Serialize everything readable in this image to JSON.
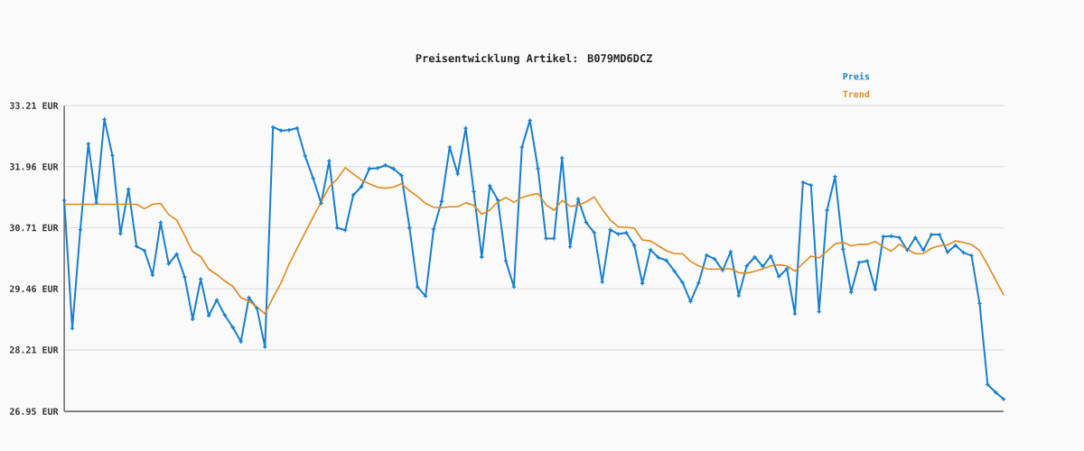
{
  "chart_data": {
    "type": "line",
    "title": "Preisentwicklung Artikel: B079MD6DCZ",
    "categories": [
      null,
      null,
      null,
      null,
      null,
      null,
      null,
      null,
      null,
      null,
      null,
      null,
      null,
      null,
      null,
      null,
      null,
      null,
      null,
      null,
      null,
      null,
      null,
      null,
      null,
      null,
      null,
      null,
      null,
      null,
      null,
      null,
      null,
      null,
      null,
      null,
      null,
      null,
      null,
      null,
      null,
      null,
      null,
      null,
      null,
      null,
      null,
      null,
      null,
      null,
      null,
      null,
      null,
      null,
      null,
      null,
      null,
      null,
      null,
      null,
      null,
      null,
      null,
      null,
      null,
      null,
      null,
      null,
      null,
      null,
      null,
      null,
      null,
      null,
      null,
      null,
      null,
      null,
      null,
      null,
      null,
      null,
      null,
      null,
      null,
      null,
      null,
      null,
      null,
      null,
      null,
      null,
      null,
      null,
      null,
      null,
      null,
      null,
      null,
      null,
      null,
      null,
      null,
      null,
      null,
      null,
      null,
      null,
      null,
      null,
      null,
      null,
      null,
      null,
      null,
      null,
      null,
      null
    ],
    "series": [
      {
        "name": "Preis",
        "color": "#1a7fcc",
        "marker": "cross",
        "values": [
          31.27,
          28.65,
          30.67,
          32.43,
          31.22,
          32.93,
          32.19,
          30.59,
          31.5,
          30.33,
          30.24,
          29.74,
          30.82,
          29.97,
          30.17,
          29.7,
          28.84,
          29.66,
          28.91,
          29.23,
          28.92,
          28.67,
          28.38,
          29.28,
          29.06,
          28.27,
          32.77,
          32.7,
          32.71,
          32.75,
          32.18,
          31.72,
          31.21,
          32.08,
          30.71,
          30.66,
          31.38,
          31.55,
          31.92,
          31.93,
          31.99,
          31.92,
          31.78,
          30.71,
          29.5,
          29.31,
          30.68,
          31.25,
          32.36,
          31.81,
          32.75,
          31.45,
          30.11,
          31.57,
          31.28,
          30.03,
          29.5,
          32.36,
          32.91,
          31.92,
          30.49,
          30.49,
          32.14,
          30.32,
          31.3,
          30.82,
          30.61,
          29.6,
          30.67,
          30.58,
          30.61,
          30.35,
          29.57,
          30.26,
          30.1,
          30.04,
          29.82,
          29.59,
          29.2,
          29.58,
          30.15,
          30.07,
          29.84,
          30.22,
          29.32,
          29.93,
          30.11,
          29.92,
          30.13,
          29.71,
          29.87,
          28.95,
          31.64,
          31.58,
          28.99,
          31.07,
          31.76,
          30.27,
          29.39,
          30.0,
          30.03,
          29.45,
          30.53,
          30.54,
          30.51,
          30.25,
          30.51,
          30.25,
          30.57,
          30.57,
          30.21,
          30.35,
          30.2,
          30.14,
          29.16,
          27.5,
          27.34,
          27.2
        ]
      },
      {
        "name": "Trend",
        "color": "#e08a1e",
        "marker": "none",
        "values": [
          31.19,
          31.19,
          31.19,
          31.19,
          31.19,
          31.19,
          31.19,
          31.19,
          31.19,
          31.19,
          31.1,
          31.19,
          31.21,
          30.98,
          30.87,
          30.55,
          30.22,
          30.12,
          29.86,
          29.75,
          29.62,
          29.51,
          29.28,
          29.21,
          29.09,
          28.95,
          29.28,
          29.58,
          29.97,
          30.29,
          30.61,
          30.93,
          31.24,
          31.55,
          31.71,
          31.94,
          31.81,
          31.69,
          31.61,
          31.54,
          31.52,
          31.54,
          31.61,
          31.47,
          31.35,
          31.21,
          31.13,
          31.12,
          31.14,
          31.14,
          31.22,
          31.17,
          30.99,
          31.07,
          31.24,
          31.33,
          31.23,
          31.33,
          31.38,
          31.41,
          31.18,
          31.07,
          31.27,
          31.15,
          31.17,
          31.24,
          31.34,
          31.09,
          30.87,
          30.73,
          30.72,
          30.7,
          30.46,
          30.44,
          30.34,
          30.24,
          30.18,
          30.18,
          30.02,
          29.93,
          29.87,
          29.86,
          29.87,
          29.87,
          29.79,
          29.78,
          29.82,
          29.87,
          29.93,
          29.95,
          29.93,
          29.82,
          29.98,
          30.13,
          30.09,
          30.23,
          30.38,
          30.41,
          30.34,
          30.37,
          30.37,
          30.43,
          30.32,
          30.23,
          30.37,
          30.27,
          30.18,
          30.18,
          30.29,
          30.34,
          30.36,
          30.44,
          30.41,
          30.37,
          30.24,
          29.95,
          29.64,
          29.33
        ]
      }
    ],
    "ylim": [
      26.95,
      33.21
    ],
    "yticks": [
      {
        "value": 26.95,
        "label": "26.95 EUR"
      },
      {
        "value": 28.21,
        "label": "28.21 EUR"
      },
      {
        "value": 29.46,
        "label": "29.46 EUR"
      },
      {
        "value": 30.71,
        "label": "30.71 EUR"
      },
      {
        "value": 31.96,
        "label": "31.96 EUR"
      },
      {
        "value": 33.21,
        "label": "33.21 EUR"
      }
    ],
    "grid": "y",
    "legend": "top right"
  }
}
